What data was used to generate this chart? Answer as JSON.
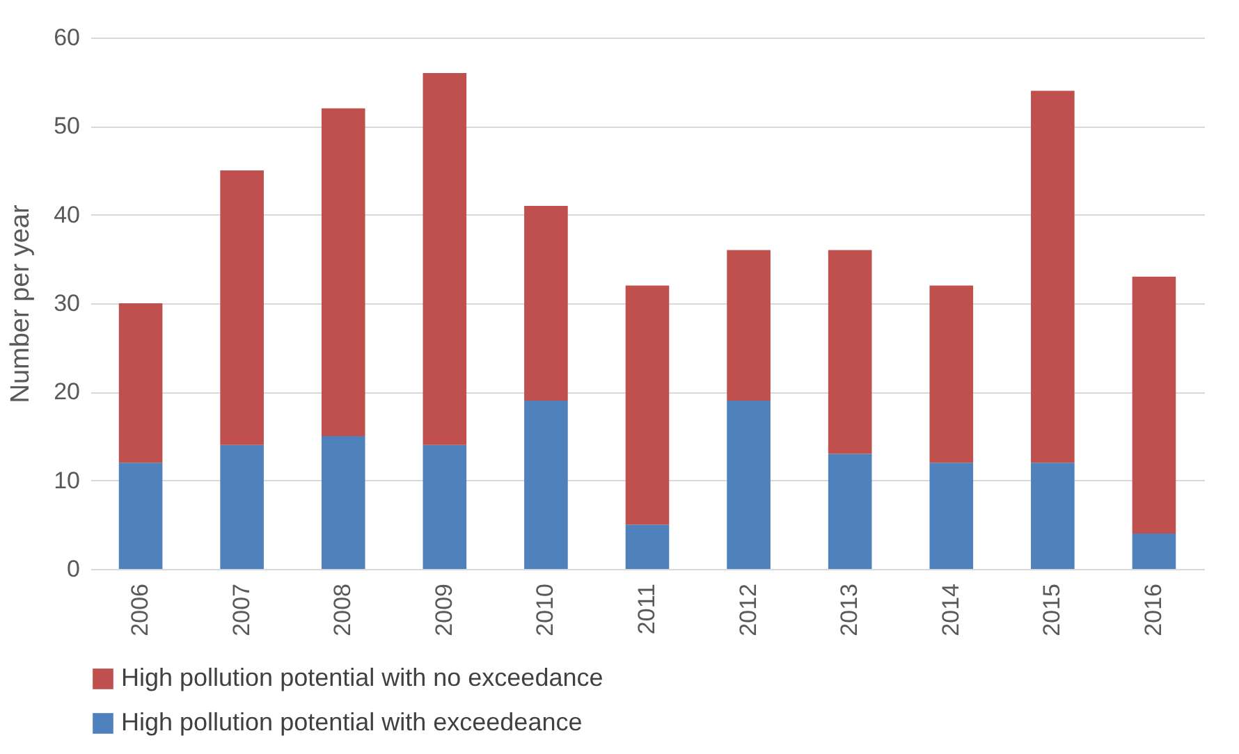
{
  "chart_data": {
    "type": "bar",
    "ylabel": "Number per year",
    "categories": [
      "2006",
      "2007",
      "2008",
      "2009",
      "2010",
      "2011",
      "2012",
      "2013",
      "2014",
      "2015",
      "2016"
    ],
    "series": [
      {
        "name": "High pollution potential with exceedeance",
        "color": "#4f81bd",
        "values": [
          12,
          14,
          15,
          14,
          19,
          5,
          19,
          13,
          12,
          12,
          4
        ]
      },
      {
        "name": "High pollution potential with no exceedance",
        "color": "#c0504d",
        "values": [
          18,
          31,
          37,
          42,
          22,
          27,
          17,
          23,
          20,
          42,
          29
        ]
      }
    ],
    "stacked": true,
    "ylim": [
      0,
      60
    ],
    "yticks": [
      0,
      10,
      20,
      30,
      40,
      50,
      60
    ],
    "grid": "y",
    "legend": "bottom"
  }
}
